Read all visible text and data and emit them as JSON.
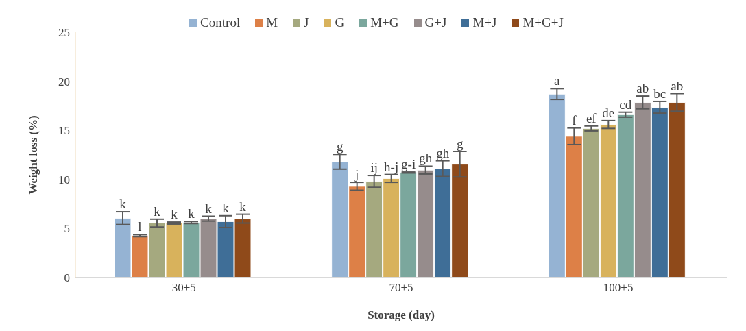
{
  "chart_data": {
    "type": "bar",
    "xlabel": "Storage (day)",
    "ylabel": "Weight loss (%)",
    "categories": [
      "30+5",
      "70+5",
      "100+5"
    ],
    "ylim": [
      0,
      25
    ],
    "yticks": [
      0,
      5,
      10,
      15,
      20,
      25
    ],
    "grid": false,
    "legend": "top",
    "series": [
      {
        "name": "Control",
        "color": "#95b3d3",
        "values": [
          6.05,
          11.8,
          18.7
        ],
        "errors": [
          0.65,
          0.75,
          0.55
        ],
        "value_labels": [
          "k",
          "g",
          "a"
        ]
      },
      {
        "name": "M",
        "color": "#dd8047",
        "values": [
          4.27,
          9.3,
          14.4
        ],
        "errors": [
          0.1,
          0.4,
          0.85
        ],
        "value_labels": [
          "l",
          "j",
          "f"
        ]
      },
      {
        "name": "J",
        "color": "#a5a97f",
        "values": [
          5.55,
          9.8,
          15.2
        ],
        "errors": [
          0.4,
          0.6,
          0.25
        ],
        "value_labels": [
          "k",
          "ij",
          "ef"
        ]
      },
      {
        "name": "G",
        "color": "#d8b25c",
        "values": [
          5.55,
          10.1,
          15.6
        ],
        "errors": [
          0.1,
          0.4,
          0.4
        ],
        "value_labels": [
          "k",
          "h-j",
          "de"
        ]
      },
      {
        "name": "M+G",
        "color": "#7ba79d",
        "values": [
          5.6,
          10.7,
          16.6
        ],
        "errors": [
          0.1,
          0.05,
          0.25
        ],
        "value_labels": [
          "k",
          "g-i",
          "cd"
        ]
      },
      {
        "name": "G+J",
        "color": "#968c8c",
        "values": [
          6.0,
          10.95,
          17.85
        ],
        "errors": [
          0.25,
          0.4,
          0.65
        ],
        "value_labels": [
          "k",
          "gh",
          "ab"
        ]
      },
      {
        "name": "M+J",
        "color": "#3f6e97",
        "values": [
          5.7,
          11.1,
          17.35
        ],
        "errors": [
          0.6,
          0.8,
          0.6
        ],
        "value_labels": [
          "k",
          "gh",
          "bc"
        ]
      },
      {
        "name": "M+G+J",
        "color": "#8f4a1a",
        "values": [
          6.0,
          11.55,
          17.85
        ],
        "errors": [
          0.45,
          1.3,
          0.9
        ],
        "value_labels": [
          "k",
          "g",
          "ab"
        ]
      }
    ]
  }
}
